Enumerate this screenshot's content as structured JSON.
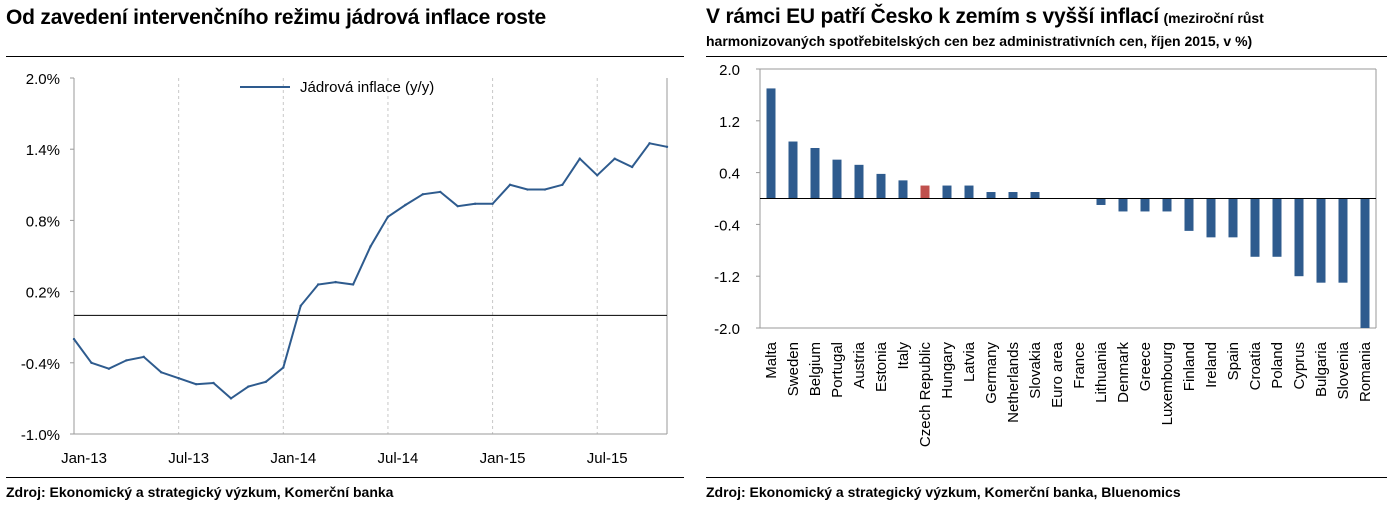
{
  "left": {
    "title": "Od zavedení intervenčního režimu jádrová inflace roste",
    "source": "Zdroj: Ekonomický a strategický výzkum, Komerční banka",
    "chart_data": {
      "type": "line",
      "title": "Od zavedení intervenčního režimu jádrová inflace roste",
      "series": [
        {
          "name": "Jádrová inflace (y/y)",
          "color": "#2e5b8e",
          "values": [
            -0.2,
            -0.4,
            -0.45,
            -0.38,
            -0.35,
            -0.48,
            -0.53,
            -0.58,
            -0.57,
            -0.7,
            -0.6,
            -0.56,
            -0.44,
            0.08,
            0.26,
            0.28,
            0.26,
            0.58,
            0.83,
            0.93,
            1.02,
            1.04,
            0.92,
            0.94,
            0.94,
            1.1,
            1.06,
            1.06,
            1.1,
            1.32,
            1.18,
            1.32,
            1.25,
            1.45,
            1.42
          ]
        }
      ],
      "x_tick_labels": [
        "Jan-13",
        "Jul-13",
        "Jan-14",
        "Jul-14",
        "Jan-15",
        "Jul-15"
      ],
      "x_tick_positions": [
        0,
        6,
        12,
        18,
        24,
        30
      ],
      "y_ticks": [
        "2.0%",
        "1.4%",
        "0.8%",
        "0.2%",
        "-0.4%",
        "-1.0%"
      ],
      "y_tick_values": [
        2.0,
        1.4,
        0.8,
        0.2,
        -0.4,
        -1.0
      ],
      "ylim": [
        -1.0,
        2.0
      ],
      "grid": "vertical dashed",
      "legend_position": "top-center"
    }
  },
  "right": {
    "title_main": "V rámci EU patří Česko k zemím s vyšší inflací",
    "title_note": "(meziroční růst harmonizovaných spotřebitelských cen bez administrativních cen, říjen 2015, v %)",
    "source": "Zdroj: Ekonomický a strategický výzkum, Komerční banka, Bluenomics",
    "chart_data": {
      "type": "bar",
      "categories": [
        "Malta",
        "Sweden",
        "Belgium",
        "Portugal",
        "Austria",
        "Estonia",
        "Italy",
        "Czech Republic",
        "Hungary",
        "Latvia",
        "Germany",
        "Netherlands",
        "Slovakia",
        "Euro area",
        "France",
        "Lithuania",
        "Denmark",
        "Greece",
        "Luxembourg",
        "Finland",
        "Ireland",
        "Spain",
        "Croatia",
        "Poland",
        "Cyprus",
        "Bulgaria",
        "Slovenia",
        "Romania"
      ],
      "values": [
        1.7,
        0.88,
        0.78,
        0.6,
        0.52,
        0.38,
        0.28,
        0.2,
        0.2,
        0.2,
        0.1,
        0.1,
        0.1,
        0.0,
        0.0,
        -0.1,
        -0.2,
        -0.2,
        -0.2,
        -0.5,
        -0.6,
        -0.6,
        -0.9,
        -0.9,
        -1.2,
        -1.3,
        -1.3,
        -2.0
      ],
      "bar_color": "#2e5b8e",
      "highlight_category": "Czech Republic",
      "highlight_color": "#c0504d",
      "y_ticks": [
        "2.0",
        "1.2",
        "0.4",
        "-0.4",
        "-1.2",
        "-2.0"
      ],
      "y_tick_values": [
        2.0,
        1.2,
        0.4,
        -0.4,
        -1.2,
        -2.0
      ],
      "ylim": [
        -2.0,
        2.0
      ]
    }
  }
}
